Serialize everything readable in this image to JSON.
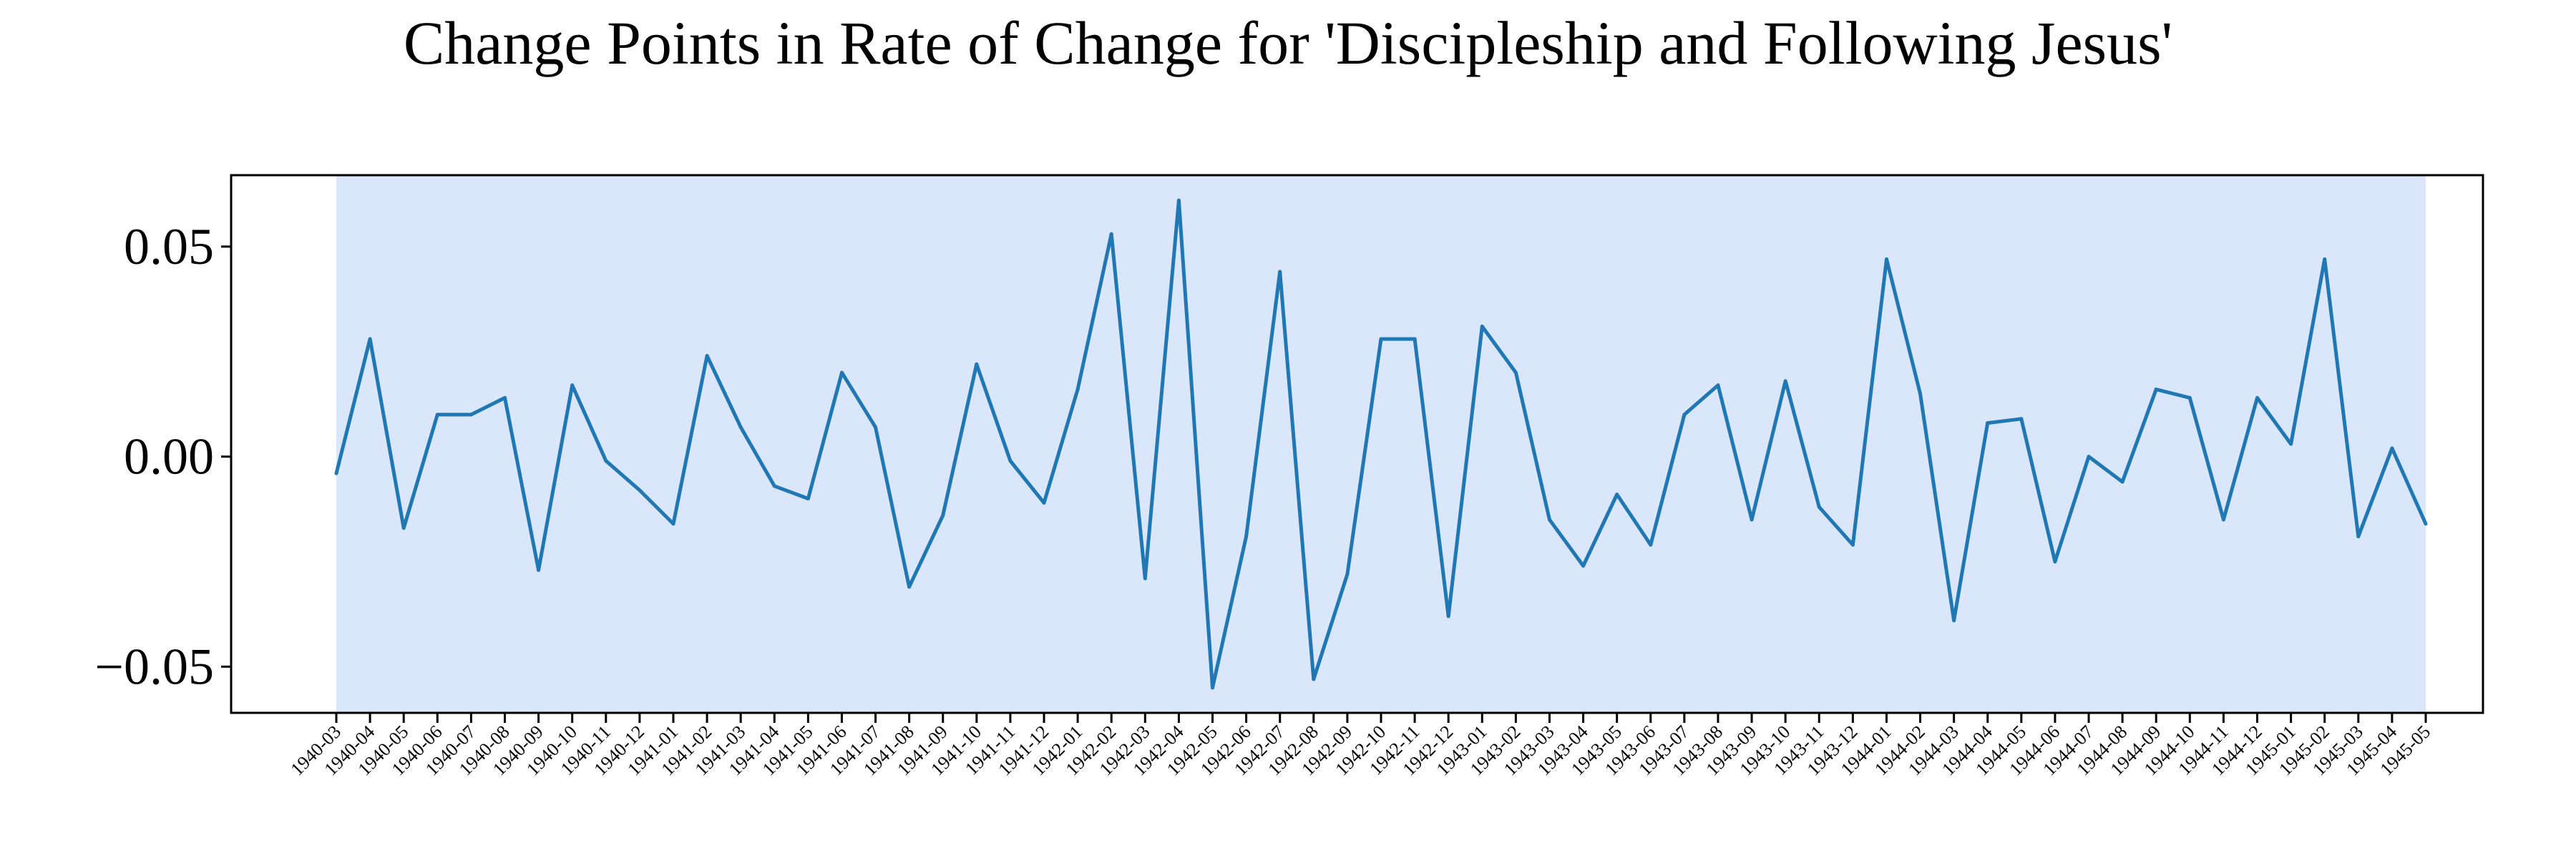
{
  "chart_data": {
    "type": "line",
    "title": "Change Points in Rate of Change for 'Discipleship and Following Jesus'",
    "xlabel": "",
    "ylabel": "",
    "categories": [
      "1940-03",
      "1940-04",
      "1940-05",
      "1940-06",
      "1940-07",
      "1940-08",
      "1940-09",
      "1940-10",
      "1940-11",
      "1940-12",
      "1941-01",
      "1941-02",
      "1941-03",
      "1941-04",
      "1941-05",
      "1941-06",
      "1941-07",
      "1941-08",
      "1941-09",
      "1941-10",
      "1941-11",
      "1941-12",
      "1942-01",
      "1942-02",
      "1942-03",
      "1942-04",
      "1942-05",
      "1942-06",
      "1942-07",
      "1942-08",
      "1942-09",
      "1942-10",
      "1942-11",
      "1942-12",
      "1943-01",
      "1943-02",
      "1943-03",
      "1943-04",
      "1943-05",
      "1943-06",
      "1943-07",
      "1943-08",
      "1943-09",
      "1943-10",
      "1943-11",
      "1943-12",
      "1944-01",
      "1944-02",
      "1944-03",
      "1944-04",
      "1944-05",
      "1944-06",
      "1944-07",
      "1944-08",
      "1944-09",
      "1944-10",
      "1944-11",
      "1944-12",
      "1945-01",
      "1945-02",
      "1945-03",
      "1945-04",
      "1945-05"
    ],
    "series": [
      {
        "color": "#1f77b4",
        "values": [
          -0.004,
          0.028,
          -0.017,
          0.01,
          0.01,
          0.014,
          -0.027,
          0.017,
          -0.001,
          -0.008,
          -0.016,
          0.024,
          0.007,
          -0.007,
          -0.01,
          0.02,
          0.007,
          -0.031,
          -0.014,
          0.022,
          -0.001,
          -0.011,
          0.016,
          0.053,
          -0.029,
          0.061,
          -0.055,
          -0.019,
          0.044,
          -0.053,
          -0.028,
          0.028,
          0.028,
          -0.038,
          0.031,
          0.02,
          -0.015,
          -0.026,
          -0.009,
          -0.021,
          0.01,
          0.017,
          -0.015,
          0.018,
          -0.012,
          -0.021,
          0.047,
          0.015,
          -0.039,
          0.008,
          0.009,
          -0.025,
          0.0,
          -0.006,
          0.016,
          0.014,
          -0.015,
          0.014,
          0.003,
          0.047,
          -0.019,
          0.002,
          -0.016
        ]
      }
    ],
    "ylim": [
      -0.061,
      0.067
    ],
    "yticks": [
      {
        "value": -0.05,
        "label": "−0.05"
      },
      {
        "value": 0.0,
        "label": "0.00"
      },
      {
        "value": 0.05,
        "label": "0.05"
      }
    ],
    "shaded_region": {
      "from": "1940-03",
      "to": "1945-05",
      "color": "#dae6fa"
    },
    "grid": false,
    "legend": "none"
  }
}
